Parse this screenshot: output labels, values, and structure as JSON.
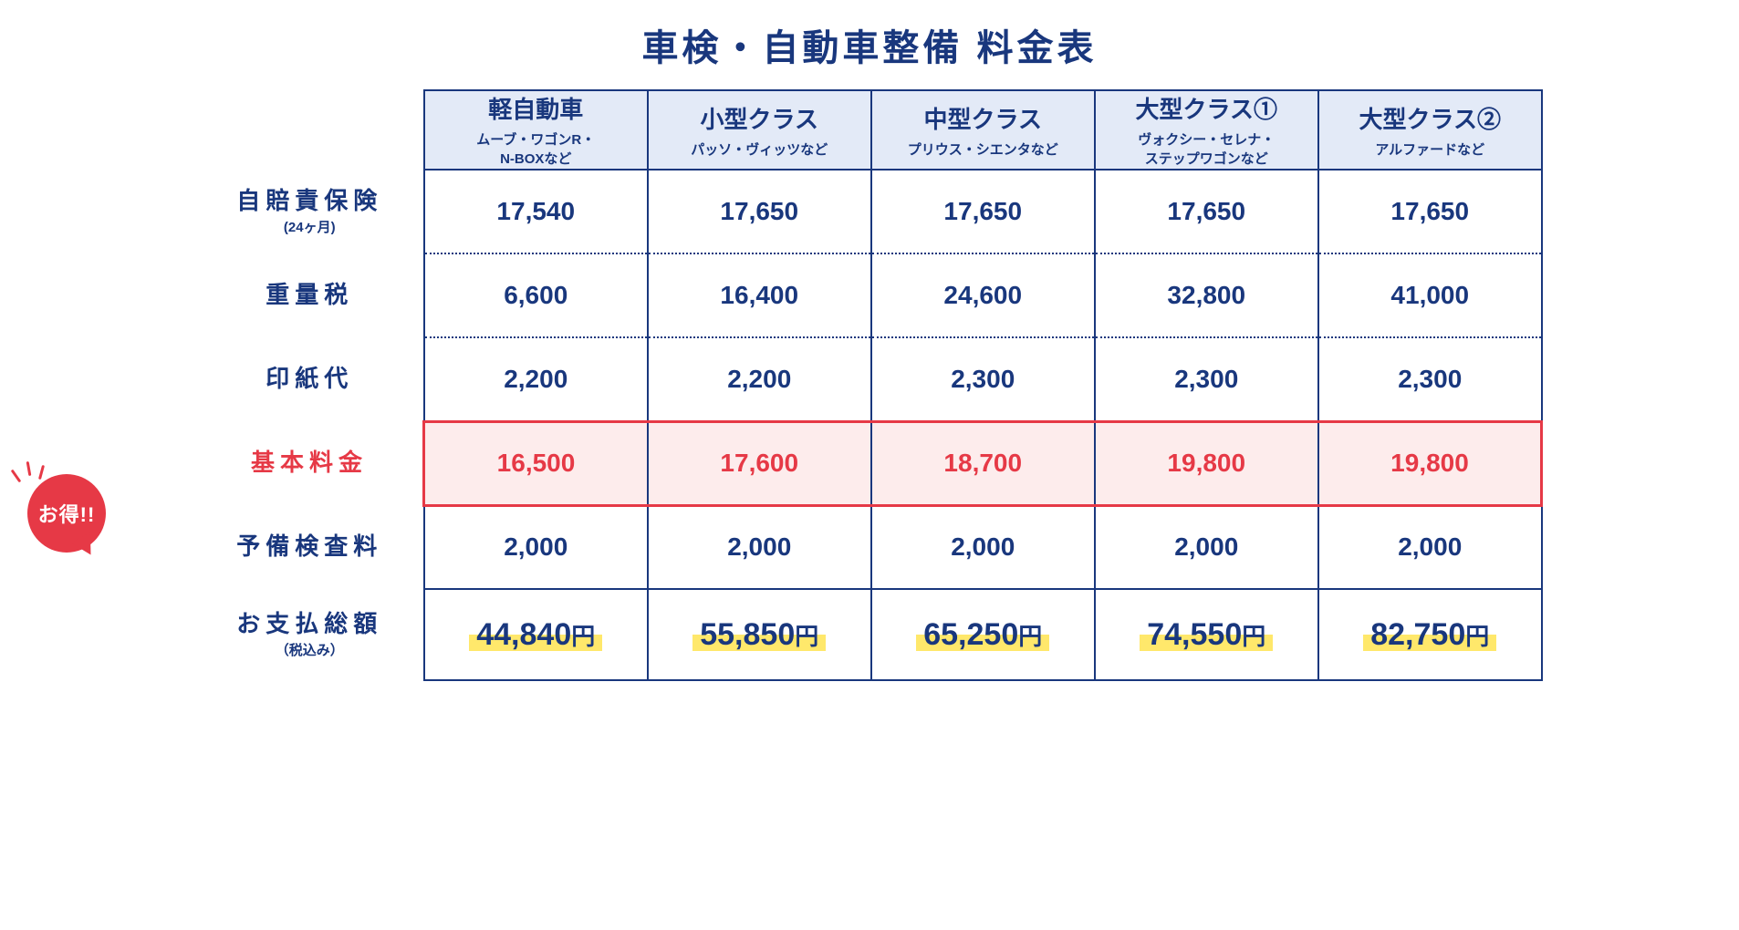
{
  "title": "車検・自動車整備 料金表",
  "colors": {
    "primary": "#19377d",
    "border": "#19377d",
    "header_bg": "#e3eaf7",
    "highlight_bg": "#fdecec",
    "highlight_border": "#e63946",
    "highlight_text": "#e63946",
    "badge_bg": "#e63946",
    "total_marker": "#ffe86b",
    "dotted": "#19377d"
  },
  "badge_text": "お得!!",
  "columns": [
    {
      "title": "軽自動車",
      "sub": "ムーブ・ワゴンR・\nN-BOXなど"
    },
    {
      "title": "小型クラス",
      "sub": "パッソ・ヴィッツなど"
    },
    {
      "title": "中型クラス",
      "sub": "プリウス・シエンタなど"
    },
    {
      "title": "大型クラス①",
      "sub": "ヴォクシー・セレナ・\nステップワゴンなど"
    },
    {
      "title": "大型クラス②",
      "sub": "アルファードなど"
    }
  ],
  "rows": [
    {
      "label": "自賠責保険",
      "sub": "(24ヶ月)",
      "values": [
        "17,540",
        "17,650",
        "17,650",
        "17,650",
        "17,650"
      ],
      "style": "dotted-bottom"
    },
    {
      "label": "重量税",
      "sub": "",
      "values": [
        "6,600",
        "16,400",
        "24,600",
        "32,800",
        "41,000"
      ],
      "style": "dotted-bottom"
    },
    {
      "label": "印紙代",
      "sub": "",
      "values": [
        "2,200",
        "2,200",
        "2,300",
        "2,300",
        "2,300"
      ],
      "style": ""
    },
    {
      "label": "基本料金",
      "sub": "",
      "values": [
        "16,500",
        "17,600",
        "18,700",
        "19,800",
        "19,800"
      ],
      "style": "highlight"
    },
    {
      "label": "予備検査料",
      "sub": "",
      "values": [
        "2,000",
        "2,000",
        "2,000",
        "2,000",
        "2,000"
      ],
      "style": "solid-top"
    }
  ],
  "total": {
    "label": "お支払総額",
    "sub": "（税込み）",
    "values": [
      "44,840",
      "55,850",
      "65,250",
      "74,550",
      "82,750"
    ],
    "suffix": "円"
  }
}
